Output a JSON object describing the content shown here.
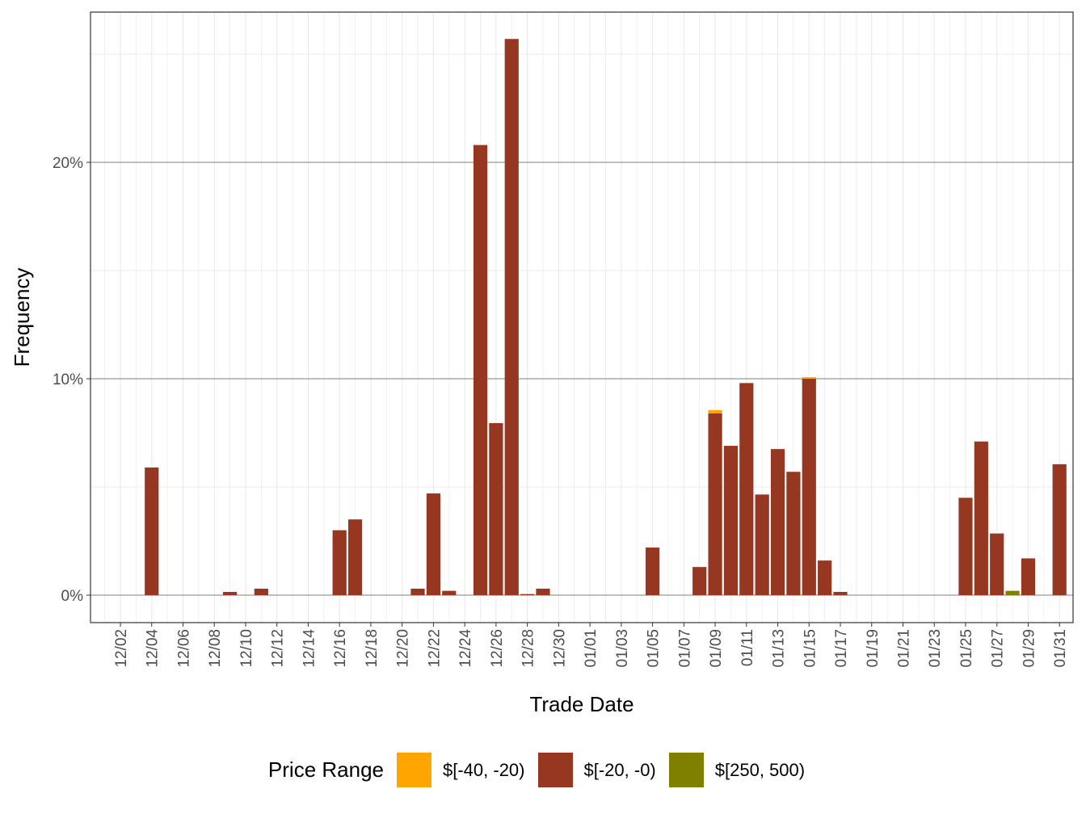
{
  "chart_data": {
    "type": "bar",
    "stacked": true,
    "xlabel": "Trade Date",
    "ylabel": "Frequency",
    "ylim": [
      -1.3,
      27.0
    ],
    "y_ticks": [
      "0%",
      "10%",
      "20%"
    ],
    "y_tick_values": [
      0,
      10,
      20
    ],
    "x_ticks": [
      "12/02",
      "12/04",
      "12/06",
      "12/08",
      "12/10",
      "12/12",
      "12/14",
      "12/16",
      "12/18",
      "12/20",
      "12/22",
      "12/24",
      "12/26",
      "12/28",
      "12/30",
      "01/01",
      "01/03",
      "01/05",
      "01/07",
      "01/09",
      "01/11",
      "01/13",
      "01/15",
      "01/17",
      "01/19",
      "01/21",
      "01/23",
      "01/25",
      "01/27",
      "01/29",
      "01/31"
    ],
    "grid": true,
    "legend_title": "Price Range",
    "legend_position": "bottom",
    "dates": [
      "12/04",
      "12/09",
      "12/11",
      "12/16",
      "12/17",
      "12/21",
      "12/22",
      "12/23",
      "12/25",
      "12/26",
      "12/27",
      "12/28",
      "12/29",
      "01/05",
      "01/08",
      "01/09",
      "01/10",
      "01/11",
      "01/12",
      "01/13",
      "01/14",
      "01/15",
      "01/16",
      "01/17",
      "01/25",
      "01/26",
      "01/27",
      "01/28",
      "01/29",
      "01/31"
    ],
    "series": [
      {
        "name": "$[-20, -0)",
        "color": "#963722",
        "values": [
          5.9,
          0.15,
          0.3,
          3.0,
          3.5,
          0.3,
          4.7,
          0.2,
          20.8,
          7.95,
          25.7,
          0.05,
          0.3,
          2.2,
          1.3,
          8.4,
          6.9,
          9.8,
          4.65,
          6.75,
          5.7,
          10.0,
          1.6,
          0.15,
          4.5,
          7.1,
          2.85,
          0,
          1.7,
          6.05
        ]
      },
      {
        "name": "$[-40, -20)",
        "color": "#FFA500",
        "values": [
          0,
          0,
          0,
          0,
          0,
          0,
          0,
          0,
          0,
          0,
          0,
          0,
          0,
          0,
          0,
          0.15,
          0,
          0,
          0,
          0,
          0,
          0.07,
          0,
          0,
          0,
          0,
          0,
          0,
          0,
          0
        ]
      },
      {
        "name": "$[250, 500)",
        "color": "#808000",
        "values": [
          0,
          0,
          0,
          0,
          0,
          0,
          0,
          0,
          0,
          0,
          0,
          0,
          0,
          0,
          0,
          0,
          0,
          0,
          0,
          0,
          0,
          0,
          0,
          0,
          0,
          0,
          0,
          0.2,
          0,
          0
        ]
      }
    ],
    "legend_order": [
      1,
      0,
      2
    ]
  }
}
